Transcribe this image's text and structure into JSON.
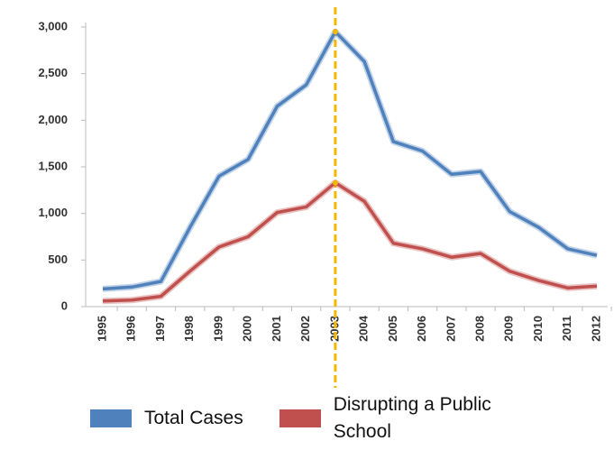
{
  "chart_data": {
    "type": "line",
    "categories": [
      "1995",
      "1996",
      "1997",
      "1998",
      "1999",
      "2000",
      "2001",
      "2002",
      "2003",
      "2004",
      "2005",
      "2006",
      "2007",
      "2008",
      "2009",
      "2010",
      "2011",
      "2012"
    ],
    "series": [
      {
        "name": "Total Cases",
        "color": "#4f81bd",
        "values": [
          190,
          210,
          270,
          850,
          1400,
          1580,
          2150,
          2380,
          2950,
          2630,
          1770,
          1670,
          1420,
          1450,
          1020,
          850,
          620,
          550
        ]
      },
      {
        "name": "Disrupting a Public School",
        "color": "#c0504d",
        "values": [
          60,
          70,
          110,
          380,
          640,
          750,
          1010,
          1070,
          1330,
          1130,
          680,
          620,
          530,
          570,
          380,
          280,
          200,
          220
        ]
      }
    ],
    "ylim": [
      0,
      3000
    ],
    "yticks": [
      0,
      500,
      {
        "value": 1000,
        "label": "1,000"
      },
      {
        "value": 1500,
        "label": "1,500"
      },
      {
        "value": 2000,
        "label": "2,000"
      },
      {
        "value": 2500,
        "label": "2,500"
      },
      {
        "value": 3000,
        "label": "3,000"
      }
    ],
    "highlight_x": "2003",
    "highlight_color": "#f5b800",
    "legend": "bottom"
  }
}
